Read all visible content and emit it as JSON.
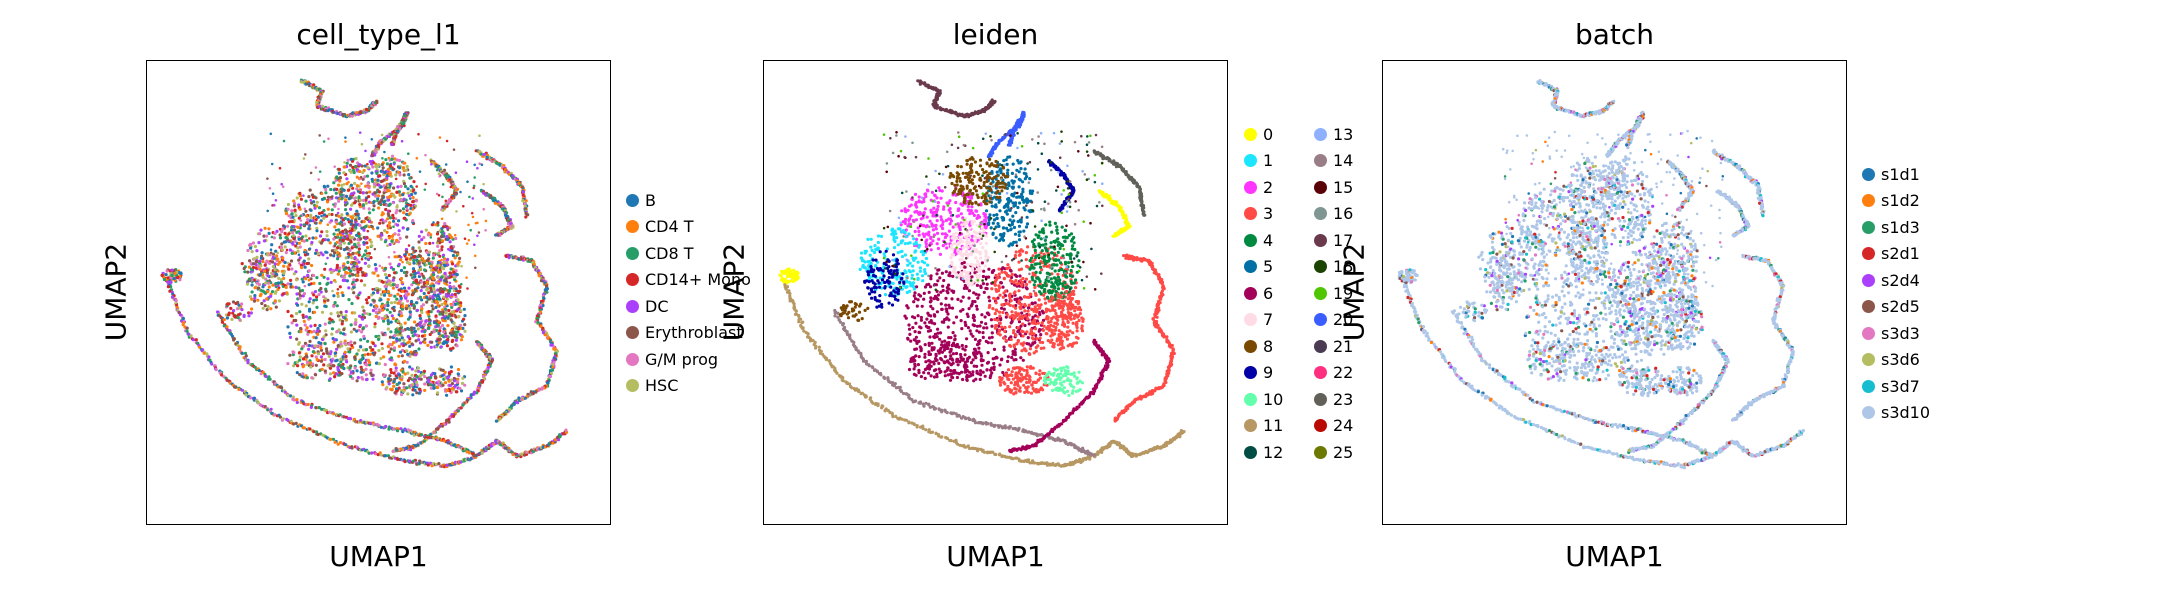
{
  "chart_data": [
    {
      "type": "scatter",
      "title": "cell_type_l1",
      "xlabel": "UMAP1",
      "ylabel": "UMAP2",
      "legend_placement": "right",
      "legend": [
        {
          "name": "B",
          "color": "#1f77b4"
        },
        {
          "name": "CD4 T",
          "color": "#ff7f0e"
        },
        {
          "name": "CD8 T",
          "color": "#279e68"
        },
        {
          "name": "CD14+ Mono",
          "color": "#d62728"
        },
        {
          "name": "DC",
          "color": "#aa40fc"
        },
        {
          "name": "Erythroblast",
          "color": "#8c564b"
        },
        {
          "name": "G/M prog",
          "color": "#e377c2"
        },
        {
          "name": "HSC",
          "color": "#b5bd61"
        }
      ]
    },
    {
      "type": "scatter",
      "title": "leiden",
      "xlabel": "UMAP1",
      "ylabel": "UMAP2",
      "legend_placement": "right",
      "legend": [
        {
          "name": "0",
          "color": "#ffff00"
        },
        {
          "name": "1",
          "color": "#1ce6ff"
        },
        {
          "name": "2",
          "color": "#ff34ff"
        },
        {
          "name": "3",
          "color": "#ff4a46"
        },
        {
          "name": "4",
          "color": "#008941"
        },
        {
          "name": "5",
          "color": "#006fa6"
        },
        {
          "name": "6",
          "color": "#a30059"
        },
        {
          "name": "7",
          "color": "#ffdbe5"
        },
        {
          "name": "8",
          "color": "#7a4900"
        },
        {
          "name": "9",
          "color": "#0000a6"
        },
        {
          "name": "10",
          "color": "#63ffac"
        },
        {
          "name": "11",
          "color": "#b79762"
        },
        {
          "name": "12",
          "color": "#004d43"
        },
        {
          "name": "13",
          "color": "#8fb0ff"
        },
        {
          "name": "14",
          "color": "#997d87"
        },
        {
          "name": "15",
          "color": "#5a0007"
        },
        {
          "name": "16",
          "color": "#809693"
        },
        {
          "name": "17",
          "color": "#6a3a4c"
        },
        {
          "name": "18",
          "color": "#1b4400"
        },
        {
          "name": "19",
          "color": "#4fc601"
        },
        {
          "name": "20",
          "color": "#3b5dff"
        },
        {
          "name": "21",
          "color": "#4a3b53"
        },
        {
          "name": "22",
          "color": "#ff2f80"
        },
        {
          "name": "23",
          "color": "#61615a"
        },
        {
          "name": "24",
          "color": "#ba0900"
        },
        {
          "name": "25",
          "color": "#6b7900"
        }
      ]
    },
    {
      "type": "scatter",
      "title": "batch",
      "xlabel": "UMAP1",
      "ylabel": "UMAP2",
      "legend_placement": "right",
      "legend": [
        {
          "name": "s1d1",
          "color": "#1f77b4"
        },
        {
          "name": "s1d2",
          "color": "#ff7f0e"
        },
        {
          "name": "s1d3",
          "color": "#279e68"
        },
        {
          "name": "s2d1",
          "color": "#d62728"
        },
        {
          "name": "s2d4",
          "color": "#aa40fc"
        },
        {
          "name": "s2d5",
          "color": "#8c564b"
        },
        {
          "name": "s3d3",
          "color": "#e377c2"
        },
        {
          "name": "s3d6",
          "color": "#b5bd61"
        },
        {
          "name": "s3d7",
          "color": "#17becf"
        },
        {
          "name": "s3d10",
          "color": "#aec7e8"
        }
      ]
    }
  ]
}
